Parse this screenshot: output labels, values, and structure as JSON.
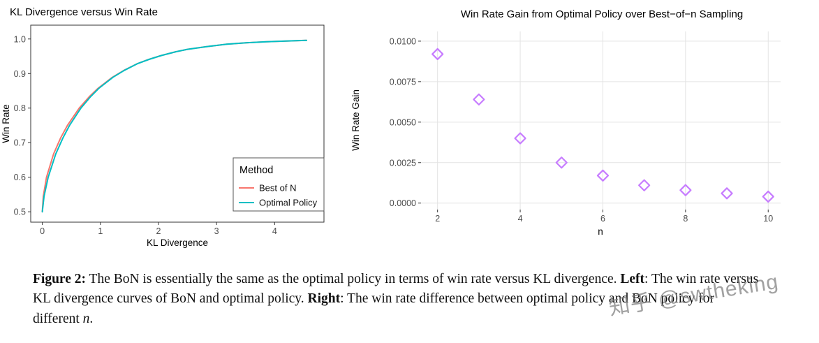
{
  "caption": {
    "figure_label": "Figure 2:",
    "part1": " The BoN is essentially the same as the optimal policy in terms of win rate versus KL divergence. ",
    "left_label": "Left",
    "part2": ": The win rate versus KL divergence curves of BoN and optimal policy. ",
    "right_label": "Right",
    "part3": ": The win rate difference between optimal policy and BoN policy for different ",
    "math_n": "n",
    "part4": "."
  },
  "watermark": "知乎 @swtheking",
  "chart_data": [
    {
      "type": "line",
      "title": "KL Divergence versus Win Rate",
      "xlabel": "KL Divergence",
      "ylabel": "Win Rate",
      "xlim": [
        -0.2,
        4.85
      ],
      "ylim": [
        0.47,
        1.04
      ],
      "xticks": [
        0,
        1,
        2,
        3,
        4
      ],
      "xtick_labels": [
        "0",
        "1",
        "2",
        "3",
        "4"
      ],
      "yticks": [
        0.5,
        0.6,
        0.7,
        0.8,
        0.9,
        1.0
      ],
      "ytick_labels": [
        "0.5",
        "0.6",
        "0.7",
        "0.8",
        "0.9",
        "1.0"
      ],
      "grid": false,
      "panel_border": true,
      "legend": {
        "title": "Method",
        "position": "inside-bottom-right"
      },
      "series": [
        {
          "name": "Best of N",
          "color": "#F8766D",
          "x": [
            0,
            0.016,
            0.072,
            0.193,
            0.316,
            0.432,
            0.636,
            0.809,
            0.958,
            1.204,
            1.403,
            1.642,
            1.835,
            2.046,
            2.296,
            2.497,
            2.829,
            3.175,
            3.511,
            3.86,
            4.199,
            4.549
          ],
          "y": [
            0.5,
            0.545,
            0.6,
            0.667,
            0.714,
            0.75,
            0.8,
            0.833,
            0.857,
            0.889,
            0.909,
            0.929,
            0.941,
            0.952,
            0.963,
            0.97,
            0.978,
            0.985,
            0.989,
            0.992,
            0.994,
            0.996
          ]
        },
        {
          "name": "Optimal Policy",
          "color": "#00BFC4",
          "x": [
            0,
            0.03,
            0.1,
            0.23,
            0.355,
            0.468,
            0.665,
            0.83,
            0.972,
            1.215,
            1.41,
            1.645,
            1.838,
            2.048,
            2.297,
            2.498,
            2.83,
            3.175,
            3.511,
            3.86,
            4.199,
            4.549
          ],
          "y": [
            0.5,
            0.545,
            0.6,
            0.667,
            0.714,
            0.75,
            0.8,
            0.833,
            0.857,
            0.889,
            0.909,
            0.929,
            0.941,
            0.952,
            0.963,
            0.97,
            0.978,
            0.985,
            0.989,
            0.992,
            0.994,
            0.996
          ]
        }
      ]
    },
    {
      "type": "scatter",
      "title": "Win Rate Gain from Optimal Policy over Best−of−n Sampling",
      "xlabel": "n",
      "ylabel": "Win Rate Gain",
      "xlim": [
        1.6,
        10.3
      ],
      "ylim": [
        -0.0004,
        0.0106
      ],
      "xticks": [
        2,
        4,
        6,
        8,
        10
      ],
      "xtick_labels": [
        "2",
        "4",
        "6",
        "8",
        "10"
      ],
      "yticks": [
        0,
        0.0025,
        0.005,
        0.0075,
        0.01
      ],
      "ytick_labels": [
        "0.0000",
        "0.0025",
        "0.0050",
        "0.0075",
        "0.0100"
      ],
      "grid": true,
      "panel_border": false,
      "marker": {
        "shape": "diamond-open",
        "color": "#C77CFF"
      },
      "x": [
        2,
        3,
        4,
        5,
        6,
        7,
        8,
        9,
        10
      ],
      "y": [
        0.0092,
        0.0064,
        0.004,
        0.0025,
        0.0017,
        0.0011,
        0.0008,
        0.0006,
        0.0004
      ]
    }
  ]
}
